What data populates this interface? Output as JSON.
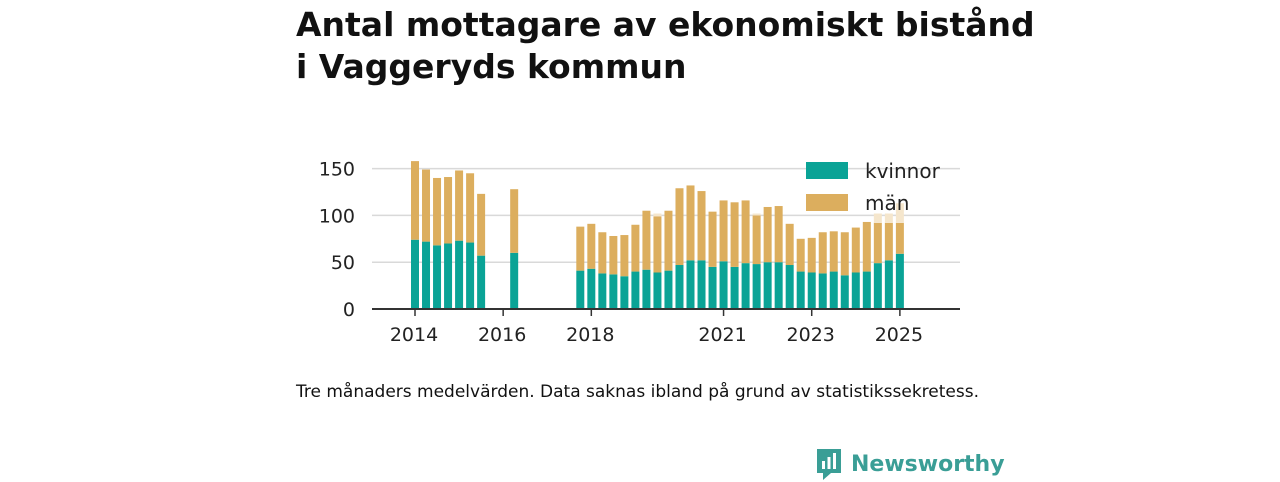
{
  "title_lines": [
    "Antal mottagare av ekonomiskt bistånd",
    "i Vaggeryds kommun"
  ],
  "footnote": "Tre månaders medelvärden. Data saknas ibland på grund av statistikssekretess.",
  "brand": {
    "name": "Newsworthy",
    "icon": "newsworthy-bar-chart-logo-icon",
    "color": "#3a9e96"
  },
  "colors": {
    "kvinnor": "#0aa396",
    "man": "#dcae5e",
    "man_faded": "#f5e6cc",
    "grid": "#d9d9d9",
    "axis": "#333333"
  },
  "chart_data": {
    "type": "bar",
    "stacked": true,
    "grid": true,
    "legend_position": "top-right",
    "ylim": [
      0,
      160
    ],
    "yticks": [
      0,
      50,
      100,
      150
    ],
    "xtick_labels": [
      "2014",
      "2016",
      "2018",
      "2021",
      "2023",
      "2025"
    ],
    "series": [
      {
        "name": "kvinnor",
        "color": "#0aa396"
      },
      {
        "name": "män",
        "color": "#dcae5e"
      }
    ],
    "note": "x positions are quarter indices from 2014 Q1; missing quarters omitted",
    "bars": [
      {
        "q": 1,
        "kvinnor": 74,
        "man": 84
      },
      {
        "q": 2,
        "kvinnor": 72,
        "man": 77
      },
      {
        "q": 3,
        "kvinnor": 68,
        "man": 72
      },
      {
        "q": 4,
        "kvinnor": 70,
        "man": 71
      },
      {
        "q": 5,
        "kvinnor": 73,
        "man": 75
      },
      {
        "q": 6,
        "kvinnor": 71,
        "man": 74
      },
      {
        "q": 7,
        "kvinnor": 57,
        "man": 66
      },
      {
        "q": 10,
        "kvinnor": 60,
        "man": 68
      },
      {
        "q": 16,
        "kvinnor": 41,
        "man": 47
      },
      {
        "q": 17,
        "kvinnor": 43,
        "man": 48
      },
      {
        "q": 18,
        "kvinnor": 38,
        "man": 44
      },
      {
        "q": 19,
        "kvinnor": 37,
        "man": 41
      },
      {
        "q": 20,
        "kvinnor": 35,
        "man": 44
      },
      {
        "q": 21,
        "kvinnor": 40,
        "man": 50
      },
      {
        "q": 22,
        "kvinnor": 42,
        "man": 63
      },
      {
        "q": 23,
        "kvinnor": 39,
        "man": 60,
        "man_faded": 3
      },
      {
        "q": 24,
        "kvinnor": 41,
        "man": 64
      },
      {
        "q": 25,
        "kvinnor": 47,
        "man": 82
      },
      {
        "q": 26,
        "kvinnor": 52,
        "man": 80
      },
      {
        "q": 27,
        "kvinnor": 52,
        "man": 74
      },
      {
        "q": 28,
        "kvinnor": 45,
        "man": 59
      },
      {
        "q": 29,
        "kvinnor": 51,
        "man": 65
      },
      {
        "q": 30,
        "kvinnor": 45,
        "man": 69
      },
      {
        "q": 31,
        "kvinnor": 49,
        "man": 67
      },
      {
        "q": 32,
        "kvinnor": 48,
        "man": 52,
        "man_faded": 2
      },
      {
        "q": 33,
        "kvinnor": 50,
        "man": 59
      },
      {
        "q": 34,
        "kvinnor": 50,
        "man": 60
      },
      {
        "q": 35,
        "kvinnor": 47,
        "man": 44
      },
      {
        "q": 36,
        "kvinnor": 40,
        "man": 35
      },
      {
        "q": 37,
        "kvinnor": 39,
        "man": 37
      },
      {
        "q": 38,
        "kvinnor": 38,
        "man": 44
      },
      {
        "q": 39,
        "kvinnor": 40,
        "man": 43
      },
      {
        "q": 40,
        "kvinnor": 36,
        "man": 46
      },
      {
        "q": 41,
        "kvinnor": 39,
        "man": 48
      },
      {
        "q": 42,
        "kvinnor": 40,
        "man": 53
      },
      {
        "q": 43,
        "kvinnor": 49,
        "man": 43,
        "man_faded": 10
      },
      {
        "q": 44,
        "kvinnor": 52,
        "man": 40,
        "man_faded": 10
      },
      {
        "q": 45,
        "kvinnor": 59,
        "man": 33,
        "man_faded": 21
      }
    ]
  }
}
